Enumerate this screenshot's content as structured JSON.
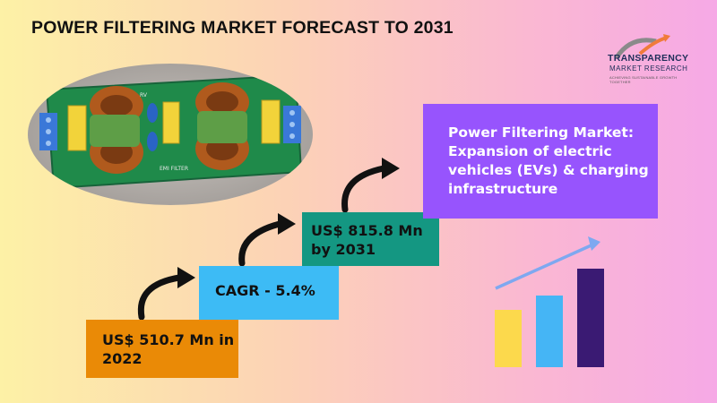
{
  "title": "POWER FILTERING MARKET FORECAST TO 2031",
  "logo": {
    "brand": "TRANSPARENCY",
    "brand_line2": "MARKET RESEARCH",
    "tagline": "ACHIEVING SUSTAINABLE GROWTH TOGETHER",
    "accent_color": "#f07b3a"
  },
  "photo": {
    "board_label_left": "RV",
    "board_label_center": "EMI FILTER"
  },
  "steps": [
    {
      "text": "US$ 510.7 Mn in 2022",
      "color": "#ea8a06"
    },
    {
      "text": "CAGR - 5.4%",
      "color": "#3dbbf5"
    },
    {
      "text": "US$ 815.8 Mn by 2031",
      "color": "#149782"
    }
  ],
  "card": {
    "text": "Power Filtering Market: Expansion of electric vehicles (EVs) & charging infrastructure",
    "color": "#9754fd"
  },
  "growth_icon": {
    "bar_colors": [
      "#fcd94c",
      "#45b5f5",
      "#3a1a73"
    ],
    "levels": [
      0.58,
      0.73,
      1.0
    ],
    "arrow_color": "#7ea8f0"
  }
}
